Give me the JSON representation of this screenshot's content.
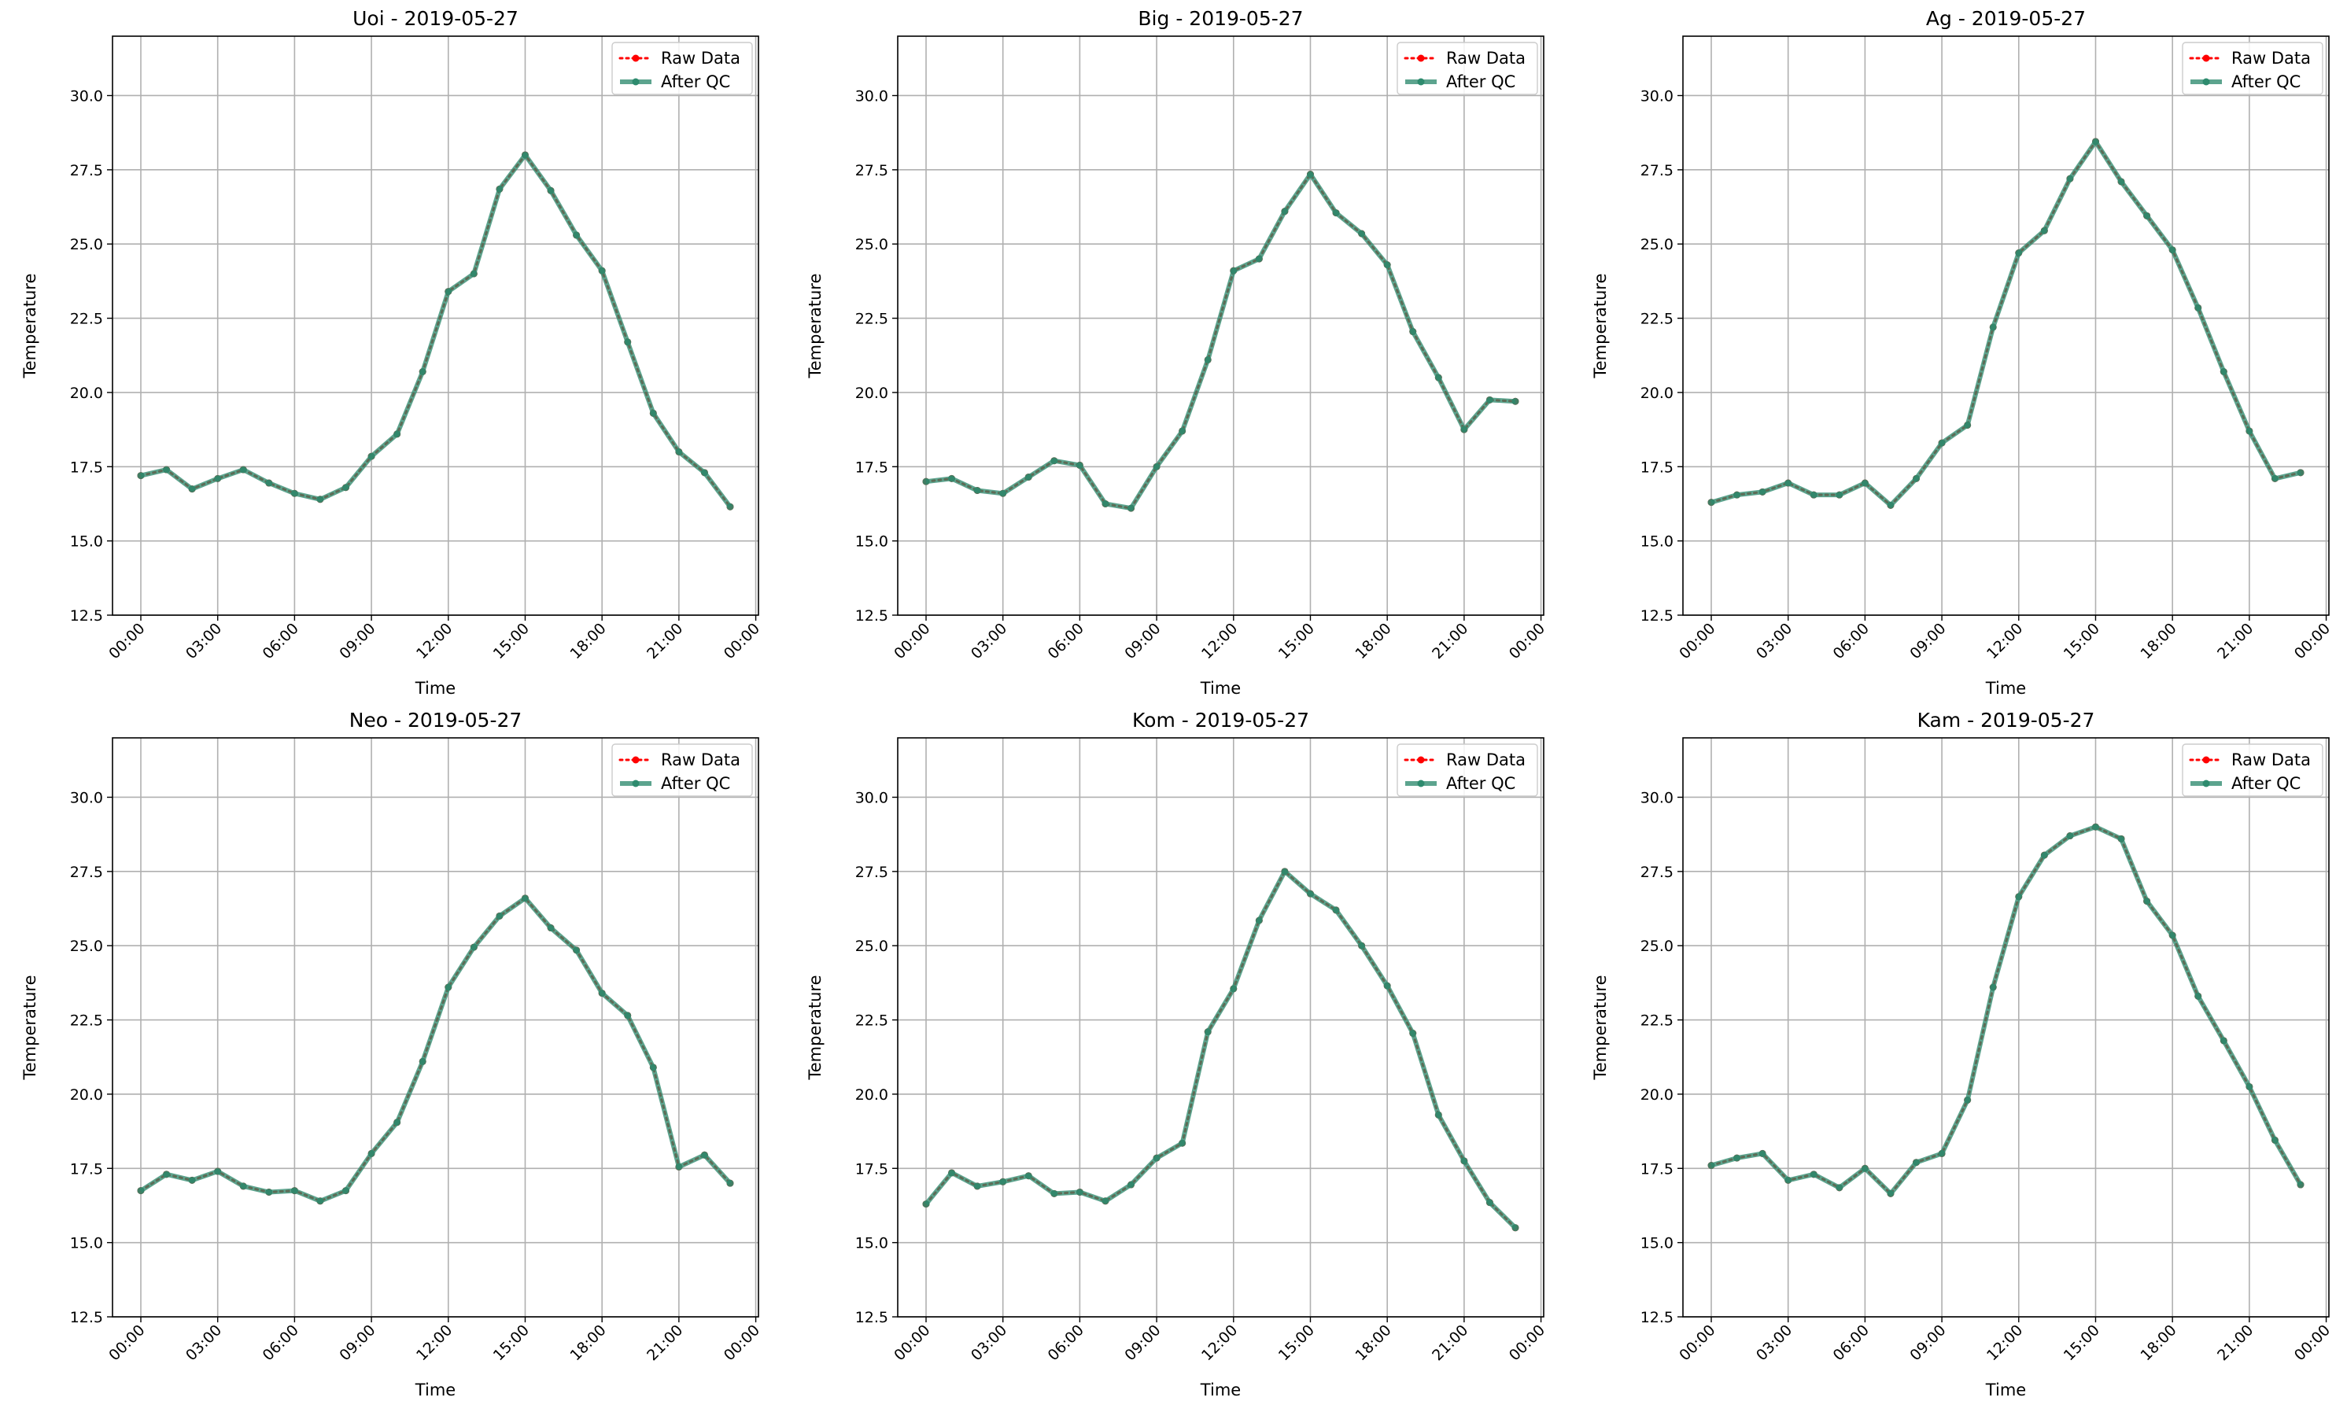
{
  "figure": {
    "background": "#ffffff"
  },
  "style": {
    "raw_color": "#ff0000",
    "qc_color": "#2e8b6e",
    "grid_color": "#b0b0b0"
  },
  "chart_data": [
    {
      "type": "line",
      "title": "Uoi - 2019-05-27",
      "xlabel": "Time",
      "ylabel": "Temperature",
      "x": [
        "00:00",
        "01:00",
        "02:00",
        "03:00",
        "04:00",
        "05:00",
        "06:00",
        "07:00",
        "08:00",
        "09:00",
        "10:00",
        "11:00",
        "12:00",
        "13:00",
        "14:00",
        "15:00",
        "16:00",
        "17:00",
        "18:00",
        "19:00",
        "20:00",
        "21:00",
        "22:00",
        "23:00"
      ],
      "xticks": [
        "00:00",
        "03:00",
        "06:00",
        "09:00",
        "12:00",
        "15:00",
        "18:00",
        "21:00",
        "00:00"
      ],
      "ylim": [
        12.5,
        32.0
      ],
      "yticks": [
        "12.5",
        "15.0",
        "17.5",
        "20.0",
        "22.5",
        "25.0",
        "27.5",
        "30.0"
      ],
      "grid": true,
      "legend_position": "top-right",
      "series": [
        {
          "name": "Raw Data",
          "style": "dotted-marker",
          "values": [
            17.2,
            17.4,
            16.75,
            17.1,
            17.4,
            16.95,
            16.6,
            16.4,
            16.8,
            17.85,
            18.6,
            20.7,
            23.4,
            24.0,
            26.85,
            28.0,
            26.8,
            25.3,
            24.1,
            21.7,
            19.3,
            18.0,
            17.3,
            16.15
          ]
        },
        {
          "name": "After QC",
          "style": "solid-marker",
          "values": [
            17.2,
            17.4,
            16.75,
            17.1,
            17.4,
            16.95,
            16.6,
            16.4,
            16.8,
            17.85,
            18.6,
            20.7,
            23.4,
            24.0,
            26.85,
            28.0,
            26.8,
            25.3,
            24.1,
            21.7,
            19.3,
            18.0,
            17.3,
            16.15
          ]
        }
      ]
    },
    {
      "type": "line",
      "title": "Big - 2019-05-27",
      "xlabel": "Time",
      "ylabel": "Temperature",
      "x": [
        "00:00",
        "01:00",
        "02:00",
        "03:00",
        "04:00",
        "05:00",
        "06:00",
        "07:00",
        "08:00",
        "09:00",
        "10:00",
        "11:00",
        "12:00",
        "13:00",
        "14:00",
        "15:00",
        "16:00",
        "17:00",
        "18:00",
        "19:00",
        "20:00",
        "21:00",
        "22:00",
        "23:00"
      ],
      "xticks": [
        "00:00",
        "03:00",
        "06:00",
        "09:00",
        "12:00",
        "15:00",
        "18:00",
        "21:00",
        "00:00"
      ],
      "ylim": [
        12.5,
        32.0
      ],
      "yticks": [
        "12.5",
        "15.0",
        "17.5",
        "20.0",
        "22.5",
        "25.0",
        "27.5",
        "30.0"
      ],
      "grid": true,
      "legend_position": "top-right",
      "series": [
        {
          "name": "Raw Data",
          "style": "dotted-marker",
          "values": [
            17.0,
            17.1,
            16.7,
            16.6,
            17.15,
            17.7,
            17.55,
            16.25,
            16.1,
            17.5,
            18.7,
            21.1,
            24.1,
            24.5,
            26.1,
            27.35,
            26.05,
            25.35,
            24.3,
            22.05,
            20.5,
            18.75,
            19.75,
            19.7
          ]
        },
        {
          "name": "After QC",
          "style": "solid-marker",
          "values": [
            17.0,
            17.1,
            16.7,
            16.6,
            17.15,
            17.7,
            17.55,
            16.25,
            16.1,
            17.5,
            18.7,
            21.1,
            24.1,
            24.5,
            26.1,
            27.35,
            26.05,
            25.35,
            24.3,
            22.05,
            20.5,
            18.75,
            19.75,
            19.7
          ]
        }
      ]
    },
    {
      "type": "line",
      "title": "Ag - 2019-05-27",
      "xlabel": "Time",
      "ylabel": "Temperature",
      "x": [
        "00:00",
        "01:00",
        "02:00",
        "03:00",
        "04:00",
        "05:00",
        "06:00",
        "07:00",
        "08:00",
        "09:00",
        "10:00",
        "11:00",
        "12:00",
        "13:00",
        "14:00",
        "15:00",
        "16:00",
        "17:00",
        "18:00",
        "19:00",
        "20:00",
        "21:00",
        "22:00",
        "23:00"
      ],
      "xticks": [
        "00:00",
        "03:00",
        "06:00",
        "09:00",
        "12:00",
        "15:00",
        "18:00",
        "21:00",
        "00:00"
      ],
      "ylim": [
        12.5,
        32.0
      ],
      "yticks": [
        "12.5",
        "15.0",
        "17.5",
        "20.0",
        "22.5",
        "25.0",
        "27.5",
        "30.0"
      ],
      "grid": true,
      "legend_position": "top-right",
      "series": [
        {
          "name": "Raw Data",
          "style": "dotted-marker",
          "values": [
            16.3,
            16.55,
            16.65,
            16.95,
            16.55,
            16.55,
            16.95,
            16.2,
            17.1,
            18.3,
            18.9,
            22.2,
            24.7,
            25.45,
            27.2,
            28.45,
            27.1,
            25.95,
            24.8,
            22.85,
            20.7,
            18.7,
            17.1,
            17.3
          ]
        },
        {
          "name": "After QC",
          "style": "solid-marker",
          "values": [
            16.3,
            16.55,
            16.65,
            16.95,
            16.55,
            16.55,
            16.95,
            16.2,
            17.1,
            18.3,
            18.9,
            22.2,
            24.7,
            25.45,
            27.2,
            28.45,
            27.1,
            25.95,
            24.8,
            22.85,
            20.7,
            18.7,
            17.1,
            17.3
          ]
        }
      ]
    },
    {
      "type": "line",
      "title": "Neo - 2019-05-27",
      "xlabel": "Time",
      "ylabel": "Temperature",
      "x": [
        "00:00",
        "01:00",
        "02:00",
        "03:00",
        "04:00",
        "05:00",
        "06:00",
        "07:00",
        "08:00",
        "09:00",
        "10:00",
        "11:00",
        "12:00",
        "13:00",
        "14:00",
        "15:00",
        "16:00",
        "17:00",
        "18:00",
        "19:00",
        "20:00",
        "21:00",
        "22:00",
        "23:00"
      ],
      "xticks": [
        "00:00",
        "03:00",
        "06:00",
        "09:00",
        "12:00",
        "15:00",
        "18:00",
        "21:00",
        "00:00"
      ],
      "ylim": [
        12.5,
        32.0
      ],
      "yticks": [
        "12.5",
        "15.0",
        "17.5",
        "20.0",
        "22.5",
        "25.0",
        "27.5",
        "30.0"
      ],
      "grid": true,
      "legend_position": "top-right",
      "series": [
        {
          "name": "Raw Data",
          "style": "dotted-marker",
          "values": [
            16.75,
            17.3,
            17.1,
            17.4,
            16.9,
            16.7,
            16.75,
            16.4,
            16.75,
            18.0,
            19.05,
            21.1,
            23.6,
            24.95,
            26.0,
            26.6,
            25.6,
            24.85,
            23.4,
            22.65,
            20.9,
            17.55,
            17.95,
            17.0
          ]
        },
        {
          "name": "After QC",
          "style": "solid-marker",
          "values": [
            16.75,
            17.3,
            17.1,
            17.4,
            16.9,
            16.7,
            16.75,
            16.4,
            16.75,
            18.0,
            19.05,
            21.1,
            23.6,
            24.95,
            26.0,
            26.6,
            25.6,
            24.85,
            23.4,
            22.65,
            20.9,
            17.55,
            17.95,
            17.0
          ]
        }
      ]
    },
    {
      "type": "line",
      "title": "Kom - 2019-05-27",
      "xlabel": "Time",
      "ylabel": "Temperature",
      "x": [
        "00:00",
        "01:00",
        "02:00",
        "03:00",
        "04:00",
        "05:00",
        "06:00",
        "07:00",
        "08:00",
        "09:00",
        "10:00",
        "11:00",
        "12:00",
        "13:00",
        "14:00",
        "15:00",
        "16:00",
        "17:00",
        "18:00",
        "19:00",
        "20:00",
        "21:00",
        "22:00",
        "23:00"
      ],
      "xticks": [
        "00:00",
        "03:00",
        "06:00",
        "09:00",
        "12:00",
        "15:00",
        "18:00",
        "21:00",
        "00:00"
      ],
      "ylim": [
        12.5,
        32.0
      ],
      "yticks": [
        "12.5",
        "15.0",
        "17.5",
        "20.0",
        "22.5",
        "25.0",
        "27.5",
        "30.0"
      ],
      "grid": true,
      "legend_position": "top-right",
      "series": [
        {
          "name": "Raw Data",
          "style": "dotted-marker",
          "values": [
            16.3,
            17.35,
            16.9,
            17.05,
            17.25,
            16.65,
            16.7,
            16.4,
            16.95,
            17.85,
            18.35,
            22.1,
            23.55,
            25.85,
            27.5,
            26.75,
            26.2,
            25.0,
            23.65,
            22.05,
            19.3,
            17.75,
            16.35,
            15.5
          ]
        },
        {
          "name": "After QC",
          "style": "solid-marker",
          "values": [
            16.3,
            17.35,
            16.9,
            17.05,
            17.25,
            16.65,
            16.7,
            16.4,
            16.95,
            17.85,
            18.35,
            22.1,
            23.55,
            25.85,
            27.5,
            26.75,
            26.2,
            25.0,
            23.65,
            22.05,
            19.3,
            17.75,
            16.35,
            15.5
          ]
        }
      ]
    },
    {
      "type": "line",
      "title": "Kam - 2019-05-27",
      "xlabel": "Time",
      "ylabel": "Temperature",
      "x": [
        "00:00",
        "01:00",
        "02:00",
        "03:00",
        "04:00",
        "05:00",
        "06:00",
        "07:00",
        "08:00",
        "09:00",
        "10:00",
        "11:00",
        "12:00",
        "13:00",
        "14:00",
        "15:00",
        "16:00",
        "17:00",
        "18:00",
        "19:00",
        "20:00",
        "21:00",
        "22:00",
        "23:00"
      ],
      "xticks": [
        "00:00",
        "03:00",
        "06:00",
        "09:00",
        "12:00",
        "15:00",
        "18:00",
        "21:00",
        "00:00"
      ],
      "ylim": [
        12.5,
        32.0
      ],
      "yticks": [
        "12.5",
        "15.0",
        "17.5",
        "20.0",
        "22.5",
        "25.0",
        "27.5",
        "30.0"
      ],
      "grid": true,
      "legend_position": "top-right",
      "series": [
        {
          "name": "Raw Data",
          "style": "dotted-marker",
          "values": [
            17.6,
            17.85,
            18.0,
            17.1,
            17.3,
            16.85,
            17.5,
            16.65,
            17.7,
            18.0,
            19.8,
            23.6,
            26.65,
            28.05,
            28.7,
            29.0,
            28.6,
            26.5,
            25.35,
            23.3,
            21.8,
            20.25,
            18.45,
            16.95
          ]
        },
        {
          "name": "After QC",
          "style": "solid-marker",
          "values": [
            17.6,
            17.85,
            18.0,
            17.1,
            17.3,
            16.85,
            17.5,
            16.65,
            17.7,
            18.0,
            19.8,
            23.6,
            26.65,
            28.05,
            28.7,
            29.0,
            28.6,
            26.5,
            25.35,
            23.3,
            21.8,
            20.25,
            18.45,
            16.95
          ]
        }
      ]
    }
  ]
}
